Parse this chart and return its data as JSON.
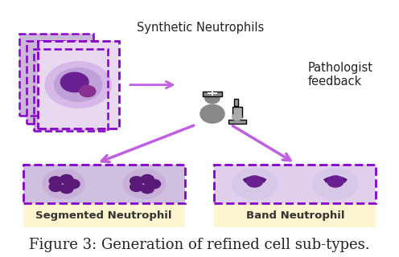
{
  "title": "Figure 3: Generation of refined cell sub-types.",
  "title_fontsize": 13,
  "title_color": "#222222",
  "background_color": "#ffffff",
  "text_synthetic": "Synthetic Neutrophils",
  "text_pathologist": "Pathologist\nfeedback",
  "text_segmented": "Segmented Neutrophil",
  "text_band": "Band Neutrophil",
  "arrow_color": "#c060e0",
  "dashed_border_color": "#8800cc",
  "label_bg_color": "#fdf5d0",
  "pathologist_icon_color": "#888888"
}
